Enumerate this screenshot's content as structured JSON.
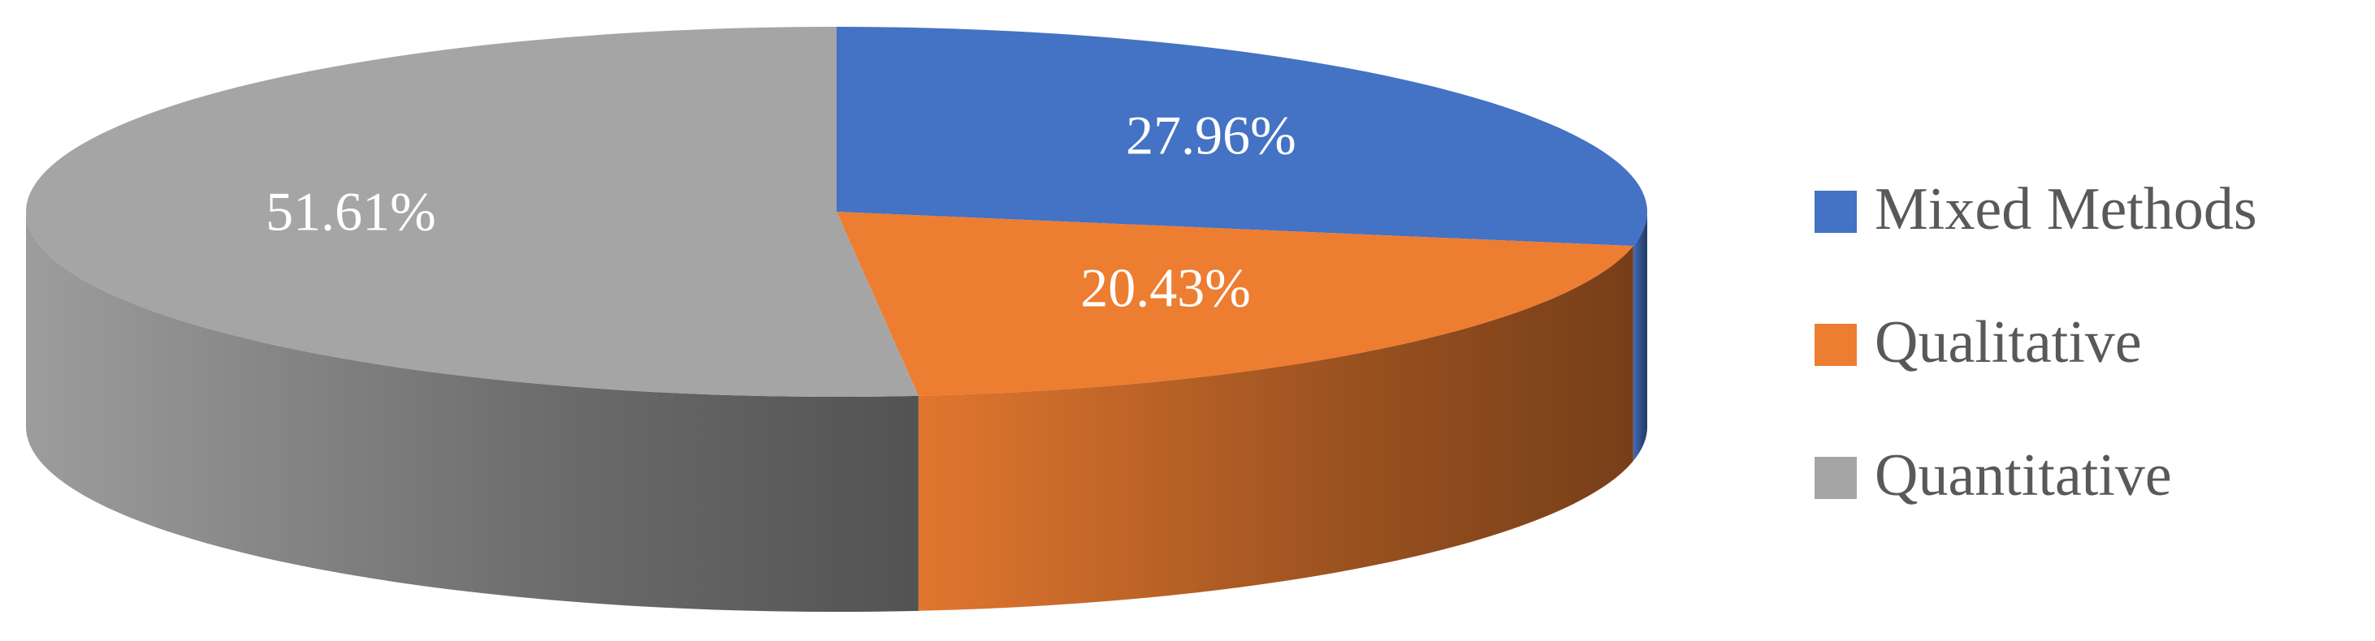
{
  "chart_data": {
    "type": "pie",
    "categories": [
      "Mixed Methods",
      "Qualitative",
      "Quantitative"
    ],
    "values": [
      27.96,
      20.43,
      51.61
    ],
    "value_labels": [
      "27.96%",
      "20.43%",
      "51.61%"
    ],
    "colors": [
      "#4472c4",
      "#ed7d31",
      "#a5a5a5"
    ],
    "legend": "right"
  }
}
